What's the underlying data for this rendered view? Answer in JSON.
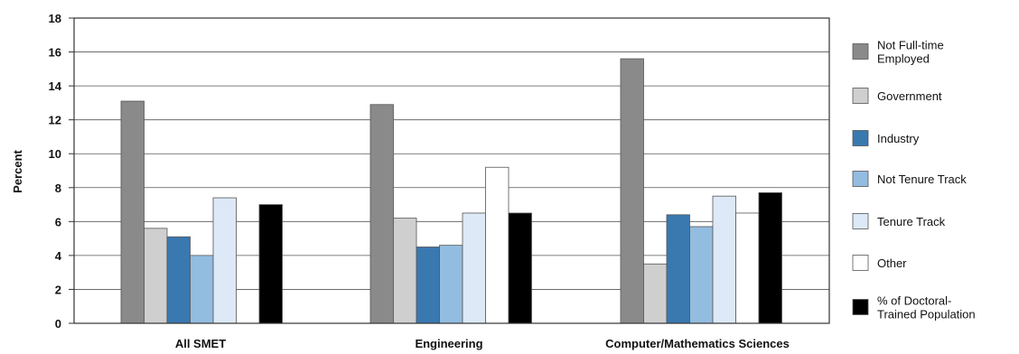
{
  "chart_data": {
    "type": "bar",
    "ylabel": "Percent",
    "xlabel": "",
    "ylim": [
      0,
      18
    ],
    "yticks": [
      "0",
      "2",
      "4",
      "6",
      "8",
      "10",
      "12",
      "14",
      "16",
      "18"
    ],
    "categories": [
      "All SMET",
      "Engineering",
      "Computer/Mathematics Sciences"
    ],
    "series": [
      {
        "name": "Not Full-time Employed",
        "color": "#8a8a8a",
        "values": [
          13.1,
          12.9,
          15.6
        ]
      },
      {
        "name": "Government",
        "color": "#cfcfcf",
        "values": [
          5.6,
          6.2,
          3.5
        ]
      },
      {
        "name": "Industry",
        "color": "#3a78b0",
        "values": [
          5.1,
          4.5,
          6.4
        ]
      },
      {
        "name": "Not Tenure Track",
        "color": "#93bde0",
        "values": [
          4.0,
          4.6,
          5.7
        ]
      },
      {
        "name": "Tenure Track",
        "color": "#dde9f6",
        "values": [
          7.4,
          6.5,
          7.5
        ]
      },
      {
        "name": "Other",
        "color": "#ffffff",
        "values": [
          null,
          9.2,
          6.5
        ]
      },
      {
        "name": "% of Doctoral-Trained Population",
        "color": "#000000",
        "values": [
          7.0,
          6.5,
          7.7
        ]
      }
    ],
    "legend": {
      "position": "right",
      "labels": [
        [
          "Not Full-time",
          "Employed"
        ],
        [
          "Government"
        ],
        [
          "Industry"
        ],
        [
          "Not Tenure Track"
        ],
        [
          "Tenure Track"
        ],
        [
          "Other"
        ],
        [
          "% of Doctoral-",
          "Trained Population"
        ]
      ]
    },
    "grid": "horizontal"
  }
}
